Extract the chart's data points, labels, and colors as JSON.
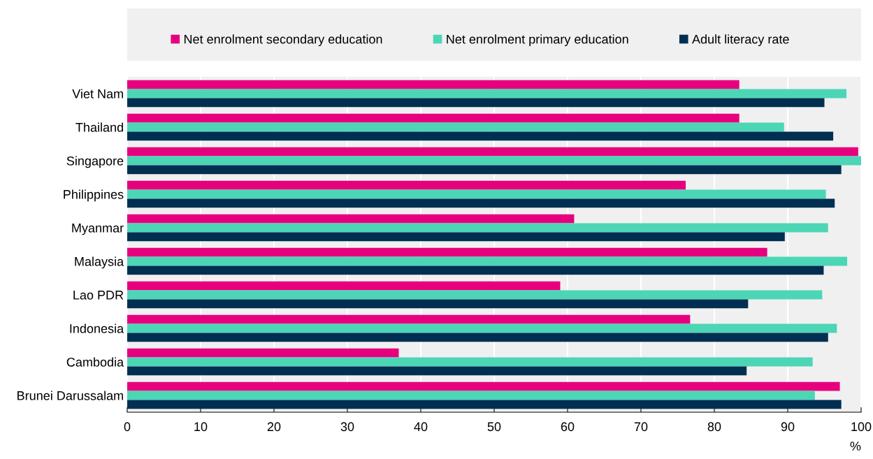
{
  "chart_data": {
    "type": "bar",
    "orientation": "horizontal",
    "categories": [
      "Viet Nam",
      "Thailand",
      "Singapore",
      "Philippines",
      "Myanmar",
      "Malaysia",
      "Lao PDR",
      "Indonesia",
      "Cambodia",
      "Brunei Darussalam"
    ],
    "series": [
      {
        "name": "Net enrolment secondary education",
        "color": "#e6007e",
        "values": [
          83.4,
          83.4,
          99.6,
          76.1,
          60.9,
          87.2,
          59.0,
          76.7,
          37.0,
          97.1
        ]
      },
      {
        "name": "Net enrolment primary education",
        "color": "#4cd6b6",
        "values": [
          98.0,
          89.5,
          100,
          95.2,
          95.5,
          98.1,
          94.7,
          96.7,
          93.4,
          93.7
        ]
      },
      {
        "name": "Adult literacy rate",
        "color": "#002f52",
        "values": [
          95.0,
          96.2,
          97.3,
          96.4,
          89.6,
          94.9,
          84.6,
          95.5,
          84.4,
          97.3
        ]
      }
    ],
    "xlim": [
      0,
      100
    ],
    "xticks": [
      0,
      10,
      20,
      30,
      40,
      50,
      60,
      70,
      80,
      90,
      100
    ],
    "annotations": [
      "%"
    ],
    "grid": "x",
    "legend": "top"
  }
}
